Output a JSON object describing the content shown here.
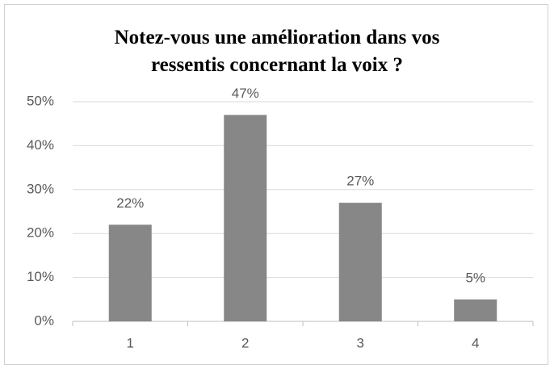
{
  "chart_data": {
    "type": "bar",
    "title": "Notez-vous une amélioration dans vos ressentis concernant la voix ?",
    "categories": [
      "1",
      "2",
      "3",
      "4"
    ],
    "values": [
      22,
      47,
      27,
      5
    ],
    "value_labels": [
      "22%",
      "47%",
      "27%",
      "5%"
    ],
    "color": "#878787",
    "ylim": [
      0,
      50
    ],
    "yticks": [
      {
        "value": 0,
        "label": "0%"
      },
      {
        "value": 10,
        "label": "10%"
      },
      {
        "value": 20,
        "label": "20%"
      },
      {
        "value": 30,
        "label": "30%"
      },
      {
        "value": 40,
        "label": "40%"
      },
      {
        "value": 50,
        "label": "50%"
      }
    ],
    "grid": true
  }
}
